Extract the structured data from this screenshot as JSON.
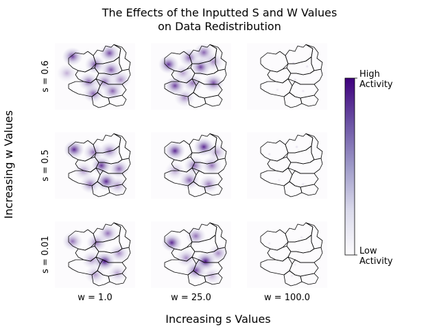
{
  "chart_data": {
    "type": "heatmap",
    "title": "The Effects of the Inputted S and W Values\non Data Redistribution",
    "xlabel": "Increasing s Values",
    "ylabel": "Increasing w Values",
    "rows": [
      {
        "label": "s = 0.6",
        "s": 0.6
      },
      {
        "label": "s = 0.5",
        "s": 0.5
      },
      {
        "label": "s = 0.01",
        "s": 0.01
      }
    ],
    "columns": [
      {
        "label": "w = 1.0",
        "w": 1.0
      },
      {
        "label": "w = 25.0",
        "w": 25.0
      },
      {
        "label": "w = 100.0",
        "w": 100.0
      }
    ],
    "colorbar": {
      "colormap": "Purples",
      "high_label": "High\nActivity",
      "low_label": "Low\nActivity",
      "high_color": "#3f007d",
      "low_color": "#fcfbfd"
    },
    "panels": [
      [
        {
          "hotspots": [
            [
              0.22,
              0.2,
              0.75
            ],
            [
              0.5,
              0.32,
              0.65
            ],
            [
              0.68,
              0.15,
              0.7
            ],
            [
              0.7,
              0.4,
              0.65
            ],
            [
              0.42,
              0.58,
              0.6
            ],
            [
              0.62,
              0.58,
              0.55
            ],
            [
              0.48,
              0.76,
              0.6
            ],
            [
              0.72,
              0.72,
              0.6
            ],
            [
              0.82,
              0.55,
              0.45
            ],
            [
              0.15,
              0.45,
              0.3
            ]
          ]
        },
        {
          "hotspots": [
            [
              0.22,
              0.32,
              0.8
            ],
            [
              0.48,
              0.22,
              0.6
            ],
            [
              0.62,
              0.36,
              0.75
            ],
            [
              0.66,
              0.14,
              0.6
            ],
            [
              0.3,
              0.64,
              0.75
            ],
            [
              0.52,
              0.6,
              0.55
            ],
            [
              0.78,
              0.6,
              0.7
            ],
            [
              0.42,
              0.82,
              0.45
            ],
            [
              0.78,
              0.28,
              0.45
            ],
            [
              0.4,
              0.45,
              0.35
            ]
          ]
        },
        {
          "hotspots": [
            [
              0.58,
              0.3,
              0.18
            ],
            [
              0.75,
              0.35,
              0.15
            ],
            [
              0.6,
              0.55,
              0.15
            ],
            [
              0.38,
              0.7,
              0.12
            ],
            [
              0.7,
              0.72,
              0.12
            ],
            [
              0.5,
              0.2,
              0.1
            ]
          ]
        }
      ],
      [
        {
          "hotspots": [
            [
              0.24,
              0.26,
              0.85
            ],
            [
              0.58,
              0.5,
              0.8
            ],
            [
              0.64,
              0.74,
              0.85
            ],
            [
              0.48,
              0.3,
              0.55
            ],
            [
              0.68,
              0.28,
              0.55
            ],
            [
              0.44,
              0.78,
              0.55
            ],
            [
              0.8,
              0.55,
              0.6
            ],
            [
              0.36,
              0.58,
              0.4
            ],
            [
              0.78,
              0.8,
              0.4
            ]
          ]
        },
        {
          "hotspots": [
            [
              0.3,
              0.28,
              0.85
            ],
            [
              0.66,
              0.22,
              0.85
            ],
            [
              0.54,
              0.5,
              0.6
            ],
            [
              0.76,
              0.5,
              0.55
            ],
            [
              0.48,
              0.72,
              0.6
            ],
            [
              0.72,
              0.78,
              0.5
            ],
            [
              0.3,
              0.58,
              0.35
            ],
            [
              0.82,
              0.3,
              0.4
            ]
          ]
        },
        {
          "hotspots": [
            [
              0.28,
              0.33,
              0.15
            ],
            [
              0.62,
              0.22,
              0.15
            ],
            [
              0.52,
              0.55,
              0.12
            ],
            [
              0.7,
              0.78,
              0.15
            ],
            [
              0.4,
              0.72,
              0.1
            ]
          ]
        }
      ],
      [
        {
          "hotspots": [
            [
              0.22,
              0.3,
              0.55
            ],
            [
              0.52,
              0.32,
              0.55
            ],
            [
              0.62,
              0.6,
              0.95
            ],
            [
              0.66,
              0.18,
              0.55
            ],
            [
              0.8,
              0.48,
              0.45
            ],
            [
              0.46,
              0.58,
              0.4
            ],
            [
              0.5,
              0.8,
              0.4
            ],
            [
              0.78,
              0.78,
              0.35
            ]
          ]
        },
        {
          "hotspots": [
            [
              0.26,
              0.32,
              0.85
            ],
            [
              0.56,
              0.22,
              0.55
            ],
            [
              0.68,
              0.6,
              0.95
            ],
            [
              0.56,
              0.74,
              0.75
            ],
            [
              0.84,
              0.48,
              0.45
            ],
            [
              0.44,
              0.55,
              0.45
            ],
            [
              0.76,
              0.82,
              0.3
            ]
          ]
        },
        {
          "hotspots": [
            [
              0.28,
              0.33,
              0.12
            ],
            [
              0.68,
              0.24,
              0.12
            ],
            [
              0.6,
              0.65,
              0.1
            ],
            [
              0.56,
              0.82,
              0.12
            ]
          ]
        }
      ]
    ]
  }
}
